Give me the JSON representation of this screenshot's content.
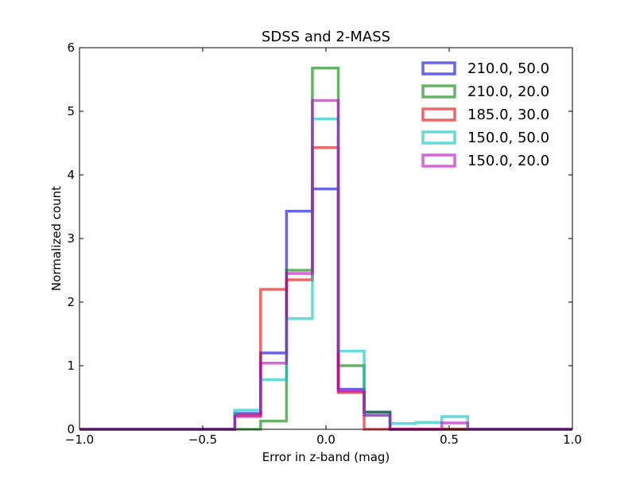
{
  "chart_data": {
    "type": "histogram",
    "title": "SDSS and 2-MASS",
    "xlabel": "Error in z-band (mag)",
    "ylabel": "Normalized count",
    "xlim": [
      -1.0,
      1.0
    ],
    "ylim": [
      0,
      6
    ],
    "x_ticks": [
      "−1.0",
      "−0.5",
      "0.0",
      "0.5",
      "1.0"
    ],
    "x_tick_values": [
      -1.0,
      -0.5,
      0.0,
      0.5,
      1.0
    ],
    "y_ticks": [
      "0",
      "1",
      "2",
      "3",
      "4",
      "5",
      "6"
    ],
    "y_tick_values": [
      0,
      1,
      2,
      3,
      4,
      5,
      6
    ],
    "legend_position": "top-right",
    "bin_edges": [
      -0.37,
      -0.265,
      -0.16,
      -0.055,
      0.05,
      0.155,
      0.26,
      0.365,
      0.47,
      0.575
    ],
    "series": [
      {
        "name": "210.0, 50.0",
        "color": "#0000e0",
        "values": [
          0.25,
          1.2,
          3.43,
          3.78,
          0.63,
          0.27,
          0.0,
          0.0,
          0.0
        ]
      },
      {
        "name": "210.0, 20.0",
        "color": "#008000",
        "values": [
          0.0,
          0.13,
          2.5,
          5.68,
          1.0,
          0.27,
          0.0,
          0.0,
          0.0
        ]
      },
      {
        "name": "185.0, 30.0",
        "color": "#e50000",
        "values": [
          0.22,
          2.2,
          2.35,
          4.43,
          0.58,
          0.0,
          0.0,
          0.0,
          0.0
        ]
      },
      {
        "name": "150.0, 50.0",
        "color": "#00bfbf",
        "values": [
          0.3,
          0.78,
          1.74,
          4.88,
          1.23,
          0.22,
          0.09,
          0.11,
          0.2
        ]
      },
      {
        "name": "150.0, 20.0",
        "color": "#bf00bf",
        "values": [
          0.2,
          1.04,
          2.45,
          5.17,
          0.6,
          0.22,
          0.0,
          0.0,
          0.1
        ]
      }
    ]
  }
}
